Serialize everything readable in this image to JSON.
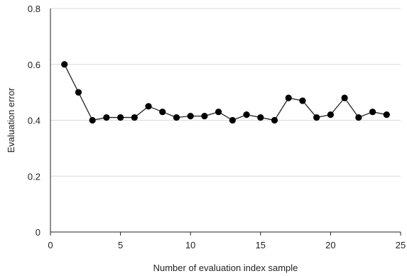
{
  "chart_data": {
    "type": "line",
    "title": "",
    "xlabel": "Number of evaluation index sample",
    "ylabel": "Evaluation error",
    "xlim": [
      0,
      25
    ],
    "ylim": [
      0,
      0.8
    ],
    "x_ticks": [
      0,
      5,
      10,
      15,
      20,
      25
    ],
    "y_ticks": [
      0,
      0.2,
      0.4,
      0.6,
      0.8
    ],
    "x_tick_labels": [
      "0",
      "5",
      "10",
      "15",
      "20",
      "25"
    ],
    "y_tick_labels": [
      "0",
      "0.2",
      "0.4",
      "0.6",
      "0.8"
    ],
    "grid": "horizontal",
    "legend": "none",
    "series": [
      {
        "x": [
          1,
          2,
          3,
          4,
          5,
          6,
          7,
          8,
          9,
          10,
          11,
          12,
          13,
          14,
          15,
          16,
          17,
          18,
          19,
          20,
          21,
          22,
          23,
          24
        ],
        "y": [
          0.6,
          0.5,
          0.4,
          0.41,
          0.41,
          0.41,
          0.45,
          0.43,
          0.41,
          0.415,
          0.415,
          0.43,
          0.4,
          0.42,
          0.41,
          0.4,
          0.48,
          0.47,
          0.41,
          0.42,
          0.48,
          0.41,
          0.43,
          0.42
        ]
      }
    ],
    "colors": {
      "line": "#222222",
      "marker": "#000000",
      "grid": "#d9d9d9",
      "axis": "#222222"
    }
  }
}
